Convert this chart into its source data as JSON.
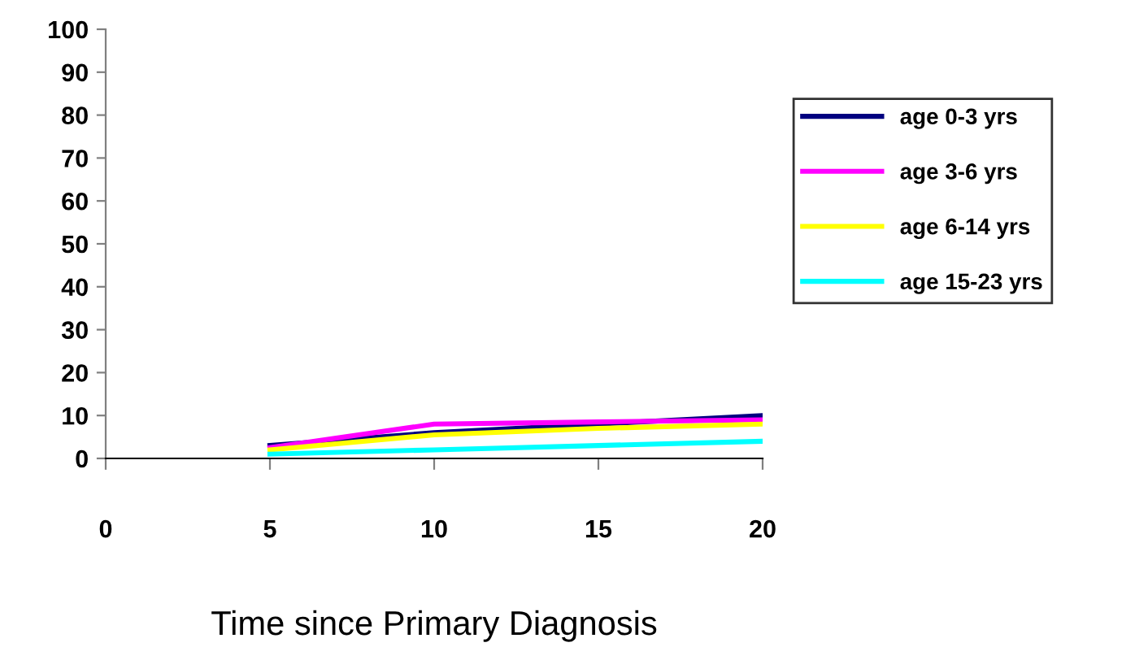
{
  "chart_data": {
    "type": "line",
    "xlabel": "Time since Primary Diagnosis",
    "x": [
      5,
      10,
      15,
      20
    ],
    "series": [
      {
        "name": "age 0-3 yrs",
        "color": "#000080",
        "values": [
          3,
          6,
          8,
          10
        ]
      },
      {
        "name": "age 3-6 yrs",
        "color": "#ff00ff",
        "values": [
          2.5,
          8,
          8.5,
          9
        ]
      },
      {
        "name": "age 6-14 yrs",
        "color": "#ffff00",
        "values": [
          2,
          5.5,
          7,
          8
        ]
      },
      {
        "name": "age 15-23 yrs",
        "color": "#00ffff",
        "values": [
          1,
          2,
          3,
          4
        ]
      }
    ],
    "xlim": [
      0,
      20
    ],
    "xticks": [
      0,
      5,
      10,
      15,
      20
    ],
    "ylim": [
      0,
      100
    ],
    "yticks": [
      0,
      10,
      20,
      30,
      40,
      50,
      60,
      70,
      80,
      90,
      100
    ],
    "grid": false,
    "legend": "right",
    "marker": "none",
    "line_style": "solid"
  }
}
